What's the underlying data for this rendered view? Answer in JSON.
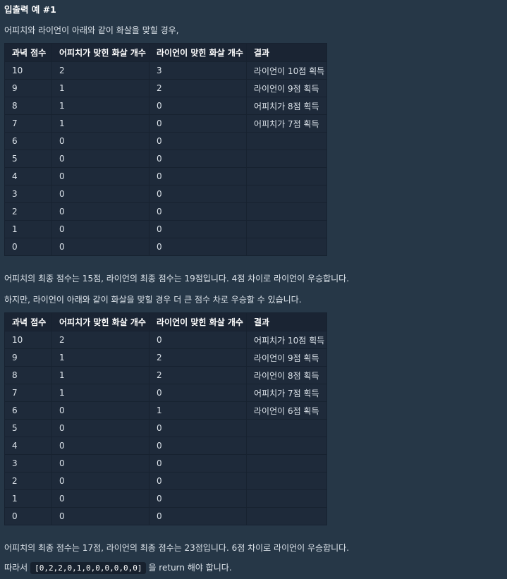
{
  "heading": "입출력 예 #1",
  "intro": "어피치와 라이언이 아래와 같이 화살을 맞힐 경우,",
  "headers": [
    "과녁 점수",
    "어피치가 맞힌 화살 개수",
    "라이언이 맞힌 화살 개수",
    "결과"
  ],
  "table1": [
    [
      "10",
      "2",
      "3",
      "라이언이 10점 획득"
    ],
    [
      "9",
      "1",
      "2",
      "라이언이 9점 획득"
    ],
    [
      "8",
      "1",
      "0",
      "어피치가 8점 획득"
    ],
    [
      "7",
      "1",
      "0",
      "어피치가 7점 획득"
    ],
    [
      "6",
      "0",
      "0",
      ""
    ],
    [
      "5",
      "0",
      "0",
      ""
    ],
    [
      "4",
      "0",
      "0",
      ""
    ],
    [
      "3",
      "0",
      "0",
      ""
    ],
    [
      "2",
      "0",
      "0",
      ""
    ],
    [
      "1",
      "0",
      "0",
      ""
    ],
    [
      "0",
      "0",
      "0",
      ""
    ]
  ],
  "summary1": "어피치의 최종 점수는 15점, 라이언의 최종 점수는 19점입니다. 4점 차이로 라이언이 우승합니다.",
  "transition": "하지만, 라이언이 아래와 같이 화살을 맞힐 경우 더 큰 점수 차로 우승할 수 있습니다.",
  "table2": [
    [
      "10",
      "2",
      "0",
      "어피치가 10점 획득"
    ],
    [
      "9",
      "1",
      "2",
      "라이언이 9점 획득"
    ],
    [
      "8",
      "1",
      "2",
      "라이언이 8점 획득"
    ],
    [
      "7",
      "1",
      "0",
      "어피치가 7점 획득"
    ],
    [
      "6",
      "0",
      "1",
      "라이언이 6점 획득"
    ],
    [
      "5",
      "0",
      "0",
      ""
    ],
    [
      "4",
      "0",
      "0",
      ""
    ],
    [
      "3",
      "0",
      "0",
      ""
    ],
    [
      "2",
      "0",
      "0",
      ""
    ],
    [
      "1",
      "0",
      "0",
      ""
    ],
    [
      "0",
      "0",
      "0",
      ""
    ]
  ],
  "summary2": "어피치의 최종 점수는 17점, 라이언의 최종 점수는 23점입니다. 6점 차이로 라이언이 우승합니다.",
  "conclusion": {
    "prefix": "따라서",
    "code": "[0,2,2,0,1,0,0,0,0,0,0]",
    "suffix": "을 return 해야 합니다."
  }
}
